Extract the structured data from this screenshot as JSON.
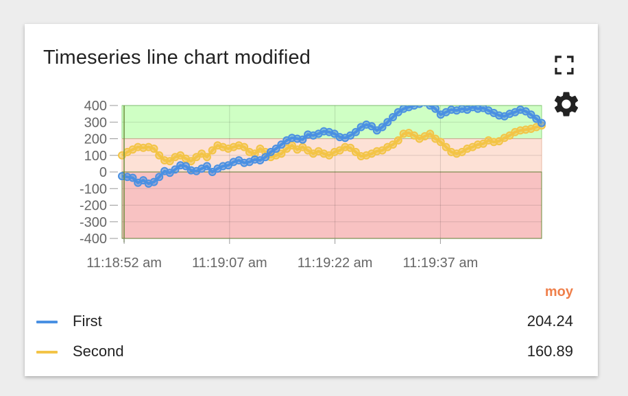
{
  "widget": {
    "title": "Timeseries line chart modified",
    "fullscreen_icon": "fullscreen-icon",
    "settings_icon": "gear-icon"
  },
  "legend": {
    "header": "moy",
    "header_color": "#ef7f4a",
    "items": [
      {
        "label": "First",
        "value": "204.24",
        "color": "#4a90e2"
      },
      {
        "label": "Second",
        "value": "160.89",
        "color": "#f3c447"
      }
    ]
  },
  "chart_data": {
    "type": "line",
    "ylim": [
      -400,
      400
    ],
    "ytick_labels": [
      "400",
      "300",
      "200",
      "100",
      "0",
      "-100",
      "-200",
      "-300",
      "-400"
    ],
    "yticks": [
      400,
      300,
      200,
      100,
      0,
      -100,
      -200,
      -300,
      -400
    ],
    "xtick_labels": [
      "11:18:52 am",
      "11:19:07 am",
      "11:19:22 am",
      "11:19:37 am"
    ],
    "xtick_seconds": [
      52,
      67,
      82,
      97
    ],
    "x_range_seconds": [
      51.7,
      111.4
    ],
    "bands": [
      {
        "from": 200,
        "to": 400,
        "color": "#cfffc4",
        "border": "#8fd57f"
      },
      {
        "from": 0,
        "to": 200,
        "color": "#fde1d6",
        "border": "#e8b9a3"
      },
      {
        "from": -400,
        "to": 0,
        "color": "#f8c2c2",
        "border": "#6b8e3a"
      }
    ],
    "series": [
      {
        "name": "First",
        "color": "#4a90e2",
        "values": [
          -25,
          -30,
          -35,
          -65,
          -50,
          -70,
          -60,
          -30,
          5,
          -5,
          15,
          40,
          35,
          10,
          5,
          20,
          35,
          0,
          20,
          35,
          40,
          60,
          70,
          55,
          60,
          75,
          70,
          90,
          120,
          140,
          165,
          190,
          205,
          200,
          195,
          225,
          220,
          230,
          245,
          240,
          230,
          210,
          205,
          220,
          240,
          270,
          285,
          275,
          250,
          270,
          300,
          330,
          360,
          380,
          390,
          400,
          410,
          420,
          400,
          380,
          345,
          360,
          375,
          370,
          380,
          375,
          390,
          380,
          385,
          370,
          355,
          340,
          335,
          350,
          360,
          375,
          365,
          345,
          320,
          295
        ]
      },
      {
        "name": "Second",
        "color": "#f3c447",
        "values": [
          100,
          120,
          135,
          150,
          145,
          150,
          140,
          100,
          70,
          65,
          90,
          100,
          80,
          65,
          90,
          110,
          90,
          130,
          160,
          150,
          140,
          150,
          160,
          150,
          120,
          110,
          140,
          120,
          90,
          100,
          110,
          140,
          160,
          135,
          150,
          130,
          110,
          125,
          110,
          100,
          120,
          130,
          150,
          145,
          120,
          95,
          100,
          110,
          125,
          130,
          150,
          165,
          190,
          230,
          235,
          220,
          200,
          215,
          230,
          200,
          180,
          150,
          120,
          110,
          120,
          140,
          150,
          165,
          170,
          190,
          180,
          185,
          205,
          220,
          240,
          250,
          255,
          260,
          270,
          280
        ]
      }
    ]
  }
}
